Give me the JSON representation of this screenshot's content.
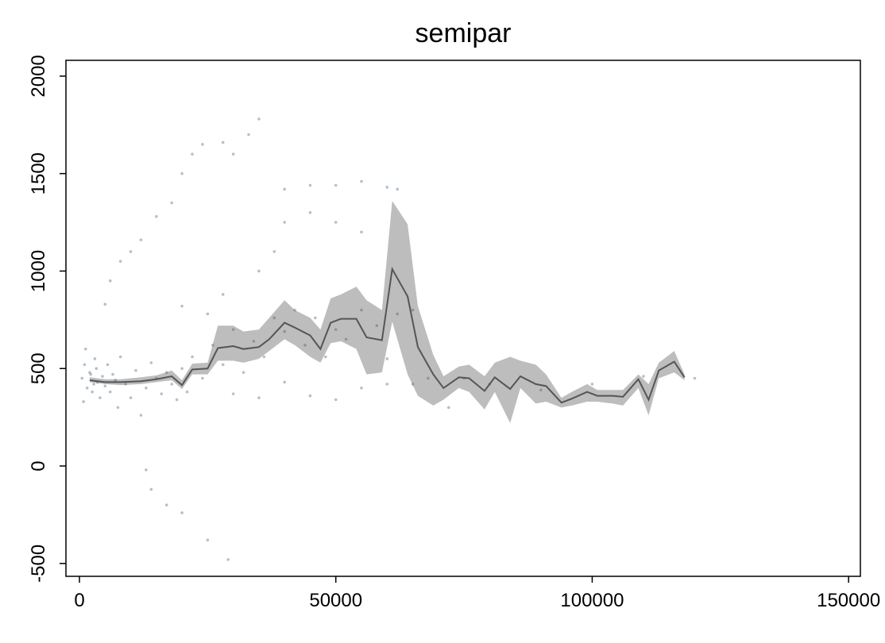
{
  "chart_data": {
    "type": "scatter",
    "title": "semipar",
    "xlim": [
      -2634,
      152300
    ],
    "ylim": [
      -566,
      2081
    ],
    "xticks": [
      0,
      50000,
      100000,
      150000
    ],
    "yticks": [
      -500,
      0,
      500,
      1000,
      1500,
      2000
    ],
    "points": {
      "color": "#1f4e79",
      "x": [
        500,
        1000,
        1500,
        2000,
        2500,
        3000,
        3500,
        4000,
        1200,
        800,
        2200,
        2800,
        3300,
        4500,
        5000,
        5500,
        6000,
        6500,
        7000,
        7500,
        8000,
        9000,
        10000,
        11000,
        12000,
        13000,
        14000,
        15000,
        16000,
        17000,
        18000,
        19000,
        20000,
        21000,
        22000,
        24000,
        26000,
        28000,
        30000,
        32000,
        34000,
        36000,
        38000,
        40000,
        42000,
        44000,
        46000,
        48000,
        50000,
        52000,
        55000,
        58000,
        60000,
        62000,
        65000,
        68000,
        72000,
        5000,
        6000,
        8000,
        10000,
        12000,
        15000,
        18000,
        20000,
        22000,
        24000,
        28000,
        30000,
        33000,
        35000,
        40000,
        45000,
        50000,
        55000,
        60000,
        62000,
        13000,
        14000,
        17000,
        20000,
        25000,
        29000,
        35000,
        38000,
        40000,
        45000,
        50000,
        55000,
        30000,
        35000,
        40000,
        45000,
        50000,
        55000,
        60000,
        65000,
        20000,
        25000,
        28000,
        75000,
        80000,
        120000,
        90000,
        100000,
        110000
      ],
      "y": [
        450,
        520,
        400,
        480,
        380,
        550,
        430,
        350,
        600,
        330,
        470,
        420,
        500,
        460,
        410,
        520,
        380,
        470,
        440,
        300,
        560,
        420,
        350,
        490,
        260,
        400,
        530,
        450,
        370,
        480,
        420,
        340,
        500,
        380,
        560,
        450,
        620,
        520,
        700,
        480,
        640,
        560,
        760,
        690,
        800,
        620,
        760,
        560,
        700,
        650,
        800,
        720,
        550,
        780,
        800,
        450,
        300,
        830,
        950,
        1050,
        1100,
        1160,
        1280,
        1350,
        1500,
        1600,
        1650,
        1660,
        1600,
        1700,
        1780,
        1420,
        1440,
        1440,
        1460,
        1430,
        1420,
        -20,
        -120,
        -200,
        -240,
        -380,
        -480,
        1000,
        1100,
        1250,
        1300,
        1250,
        1200,
        370,
        350,
        430,
        360,
        340,
        400,
        420,
        420,
        820,
        780,
        880,
        450,
        420,
        450,
        390,
        420,
        460
      ]
    },
    "fit": {
      "color": "#555555",
      "band_color": "#bdbdbd",
      "x": [
        2000,
        5000,
        8000,
        12000,
        15000,
        18000,
        20000,
        22000,
        25000,
        27000,
        30000,
        32000,
        35000,
        37000,
        40000,
        42000,
        45000,
        47000,
        49000,
        51000,
        54000,
        56000,
        59000,
        61000,
        64000,
        66000,
        69000,
        71000,
        74000,
        76000,
        79000,
        81000,
        84000,
        86000,
        89000,
        91000,
        94000,
        96000,
        99000,
        101000,
        104000,
        106000,
        109000,
        111000,
        113000,
        116000,
        118000
      ],
      "values": [
        440,
        430,
        430,
        435,
        445,
        460,
        415,
        495,
        500,
        605,
        615,
        600,
        610,
        650,
        735,
        710,
        670,
        600,
        735,
        755,
        755,
        660,
        645,
        1010,
        870,
        610,
        470,
        400,
        455,
        450,
        385,
        455,
        395,
        460,
        420,
        410,
        325,
        345,
        380,
        360,
        360,
        355,
        445,
        340,
        490,
        535,
        455
      ],
      "lower": [
        430,
        420,
        415,
        420,
        430,
        440,
        395,
        470,
        470,
        540,
        540,
        530,
        550,
        590,
        650,
        620,
        560,
        530,
        630,
        640,
        600,
        470,
        480,
        740,
        470,
        360,
        310,
        340,
        400,
        380,
        290,
        380,
        220,
        400,
        320,
        330,
        300,
        310,
        330,
        330,
        320,
        310,
        400,
        260,
        450,
        480,
        440
      ],
      "upper": [
        455,
        445,
        445,
        455,
        465,
        490,
        440,
        525,
        530,
        720,
        720,
        690,
        700,
        760,
        850,
        800,
        760,
        700,
        860,
        880,
        920,
        850,
        800,
        1360,
        1240,
        820,
        570,
        460,
        510,
        520,
        460,
        530,
        560,
        540,
        520,
        470,
        350,
        380,
        420,
        390,
        390,
        390,
        470,
        420,
        530,
        590,
        470
      ]
    }
  }
}
